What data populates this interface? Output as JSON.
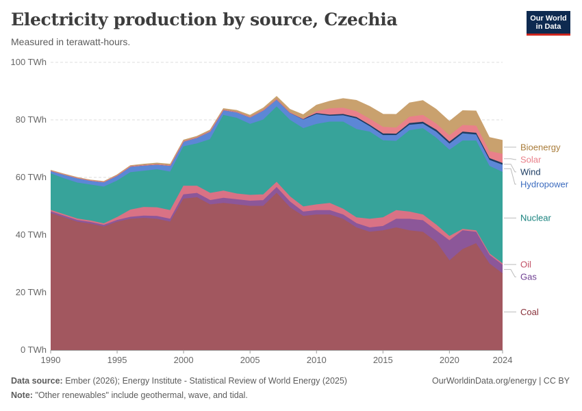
{
  "header": {
    "title": "Electricity production by source, Czechia",
    "subtitle": "Measured in terawatt-hours."
  },
  "logo": {
    "line1": "Our World",
    "line2": "in Data"
  },
  "footer": {
    "source_label": "Data source:",
    "source_text": "Ember (2026); Energy Institute - Statistical Review of World Energy (2025)",
    "note_label": "Note:",
    "note_text": "\"Other renewables\" include geothermal, wave, and tidal.",
    "credit": "OurWorldinData.org/energy | CC BY"
  },
  "chart_data": {
    "type": "area",
    "stacked": true,
    "title": "Electricity production by source, Czechia",
    "ylabel": "TWh",
    "ylim": [
      0,
      100
    ],
    "yticks": [
      0,
      20,
      40,
      60,
      80,
      100
    ],
    "ytick_labels": [
      "0 TWh",
      "20 TWh",
      "40 TWh",
      "60 TWh",
      "80 TWh",
      "100 TWh"
    ],
    "xticks": [
      1990,
      1995,
      2000,
      2005,
      2010,
      2015,
      2020,
      2024
    ],
    "x": [
      1990,
      1991,
      1992,
      1993,
      1994,
      1995,
      1996,
      1997,
      1998,
      1999,
      2000,
      2001,
      2002,
      2003,
      2004,
      2005,
      2006,
      2007,
      2008,
      2009,
      2010,
      2011,
      2012,
      2013,
      2014,
      2015,
      2016,
      2017,
      2018,
      2019,
      2020,
      2021,
      2022,
      2023,
      2024
    ],
    "series": [
      {
        "name": "Coal",
        "color": "#a2575f",
        "label_color": "#883039",
        "values": [
          47.5,
          46.0,
          44.5,
          43.8,
          42.8,
          44.5,
          45.5,
          45.8,
          45.5,
          44.5,
          52.5,
          53.0,
          50.5,
          51.0,
          50.5,
          50.0,
          50.0,
          54.5,
          49.5,
          46.5,
          47.0,
          47.0,
          45.5,
          42.5,
          41.0,
          41.5,
          42.5,
          41.5,
          41.0,
          37.5,
          31.0,
          35.0,
          37.0,
          30.0,
          26.5
        ]
      },
      {
        "name": "Gas",
        "color": "#8c5799",
        "label_color": "#6d3e91",
        "values": [
          0.6,
          0.6,
          0.6,
          0.6,
          0.6,
          0.6,
          0.7,
          0.8,
          1.0,
          1.0,
          1.5,
          1.5,
          1.5,
          1.8,
          1.8,
          1.8,
          2.0,
          2.0,
          2.0,
          1.5,
          1.5,
          1.5,
          1.5,
          1.5,
          1.5,
          1.5,
          3.0,
          4.0,
          4.0,
          4.0,
          7.0,
          6.5,
          4.0,
          3.0,
          3.0
        ]
      },
      {
        "name": "Oil",
        "color": "#d97285",
        "label_color": "#c15065",
        "values": [
          0.5,
          0.5,
          0.5,
          0.5,
          0.5,
          1.0,
          2.5,
          3.0,
          3.0,
          3.0,
          3.0,
          2.5,
          2.5,
          2.5,
          2.0,
          2.0,
          2.0,
          1.8,
          1.8,
          1.8,
          2.0,
          2.5,
          2.0,
          2.0,
          3.0,
          3.0,
          3.0,
          2.5,
          2.0,
          2.0,
          1.5,
          0.5,
          0.5,
          0.5,
          0.5
        ]
      },
      {
        "name": "Nuclear",
        "color": "#37a39a",
        "label_color": "#18827e",
        "values": [
          12.7,
          12.5,
          12.5,
          12.5,
          12.8,
          12.7,
          13.0,
          12.6,
          13.2,
          13.4,
          13.7,
          14.7,
          18.7,
          26.3,
          26.3,
          24.7,
          26.0,
          26.2,
          26.6,
          27.2,
          28.0,
          28.3,
          30.3,
          30.7,
          30.3,
          26.8,
          24.1,
          28.3,
          30.0,
          30.2,
          30.0,
          30.7,
          31.2,
          30.4,
          31.8
        ]
      },
      {
        "name": "Hydropower",
        "color": "#5c87d6",
        "label_color": "#3c6cbf",
        "values": [
          1.0,
          1.4,
          1.7,
          1.5,
          1.7,
          1.8,
          2.1,
          2.0,
          1.8,
          2.2,
          1.8,
          2.1,
          2.8,
          1.8,
          2.1,
          2.4,
          3.3,
          2.5,
          2.4,
          3.0,
          3.4,
          2.0,
          2.2,
          3.7,
          1.9,
          1.8,
          2.0,
          1.9,
          1.6,
          2.1,
          2.1,
          2.5,
          2.1,
          2.1,
          2.5
        ]
      },
      {
        "name": "Wind",
        "color": "#1d3d63",
        "label_color": "#1d3d63",
        "values": [
          0.0,
          0.0,
          0.0,
          0.0,
          0.0,
          0.0,
          0.0,
          0.0,
          0.0,
          0.0,
          0.0,
          0.0,
          0.0,
          0.01,
          0.01,
          0.02,
          0.05,
          0.13,
          0.25,
          0.29,
          0.34,
          0.4,
          0.42,
          0.48,
          0.48,
          0.57,
          0.5,
          0.59,
          0.61,
          0.7,
          0.7,
          0.6,
          0.6,
          0.6,
          0.6
        ]
      },
      {
        "name": "Solar",
        "color": "#e9808a",
        "label_color": "#e9808a",
        "values": [
          0.0,
          0.0,
          0.0,
          0.0,
          0.0,
          0.0,
          0.0,
          0.0,
          0.0,
          0.0,
          0.0,
          0.0,
          0.0,
          0.0,
          0.0,
          0.0,
          0.0,
          0.0,
          0.01,
          0.09,
          0.6,
          2.2,
          2.2,
          2.0,
          2.1,
          2.3,
          2.1,
          2.2,
          2.4,
          2.1,
          2.2,
          2.3,
          2.5,
          2.4,
          3.2
        ]
      },
      {
        "name": "Bioenergy",
        "color": "#c9a16e",
        "label_color": "#a97c3a",
        "values": [
          0.2,
          0.2,
          0.2,
          0.2,
          0.2,
          0.3,
          0.3,
          0.4,
          0.5,
          0.5,
          0.5,
          0.5,
          0.5,
          0.5,
          0.6,
          0.7,
          0.8,
          1.0,
          1.1,
          1.4,
          2.3,
          2.6,
          3.3,
          3.9,
          4.4,
          4.5,
          4.7,
          4.9,
          5.1,
          5.1,
          5.0,
          5.1,
          5.2,
          4.9,
          4.8
        ]
      }
    ]
  }
}
